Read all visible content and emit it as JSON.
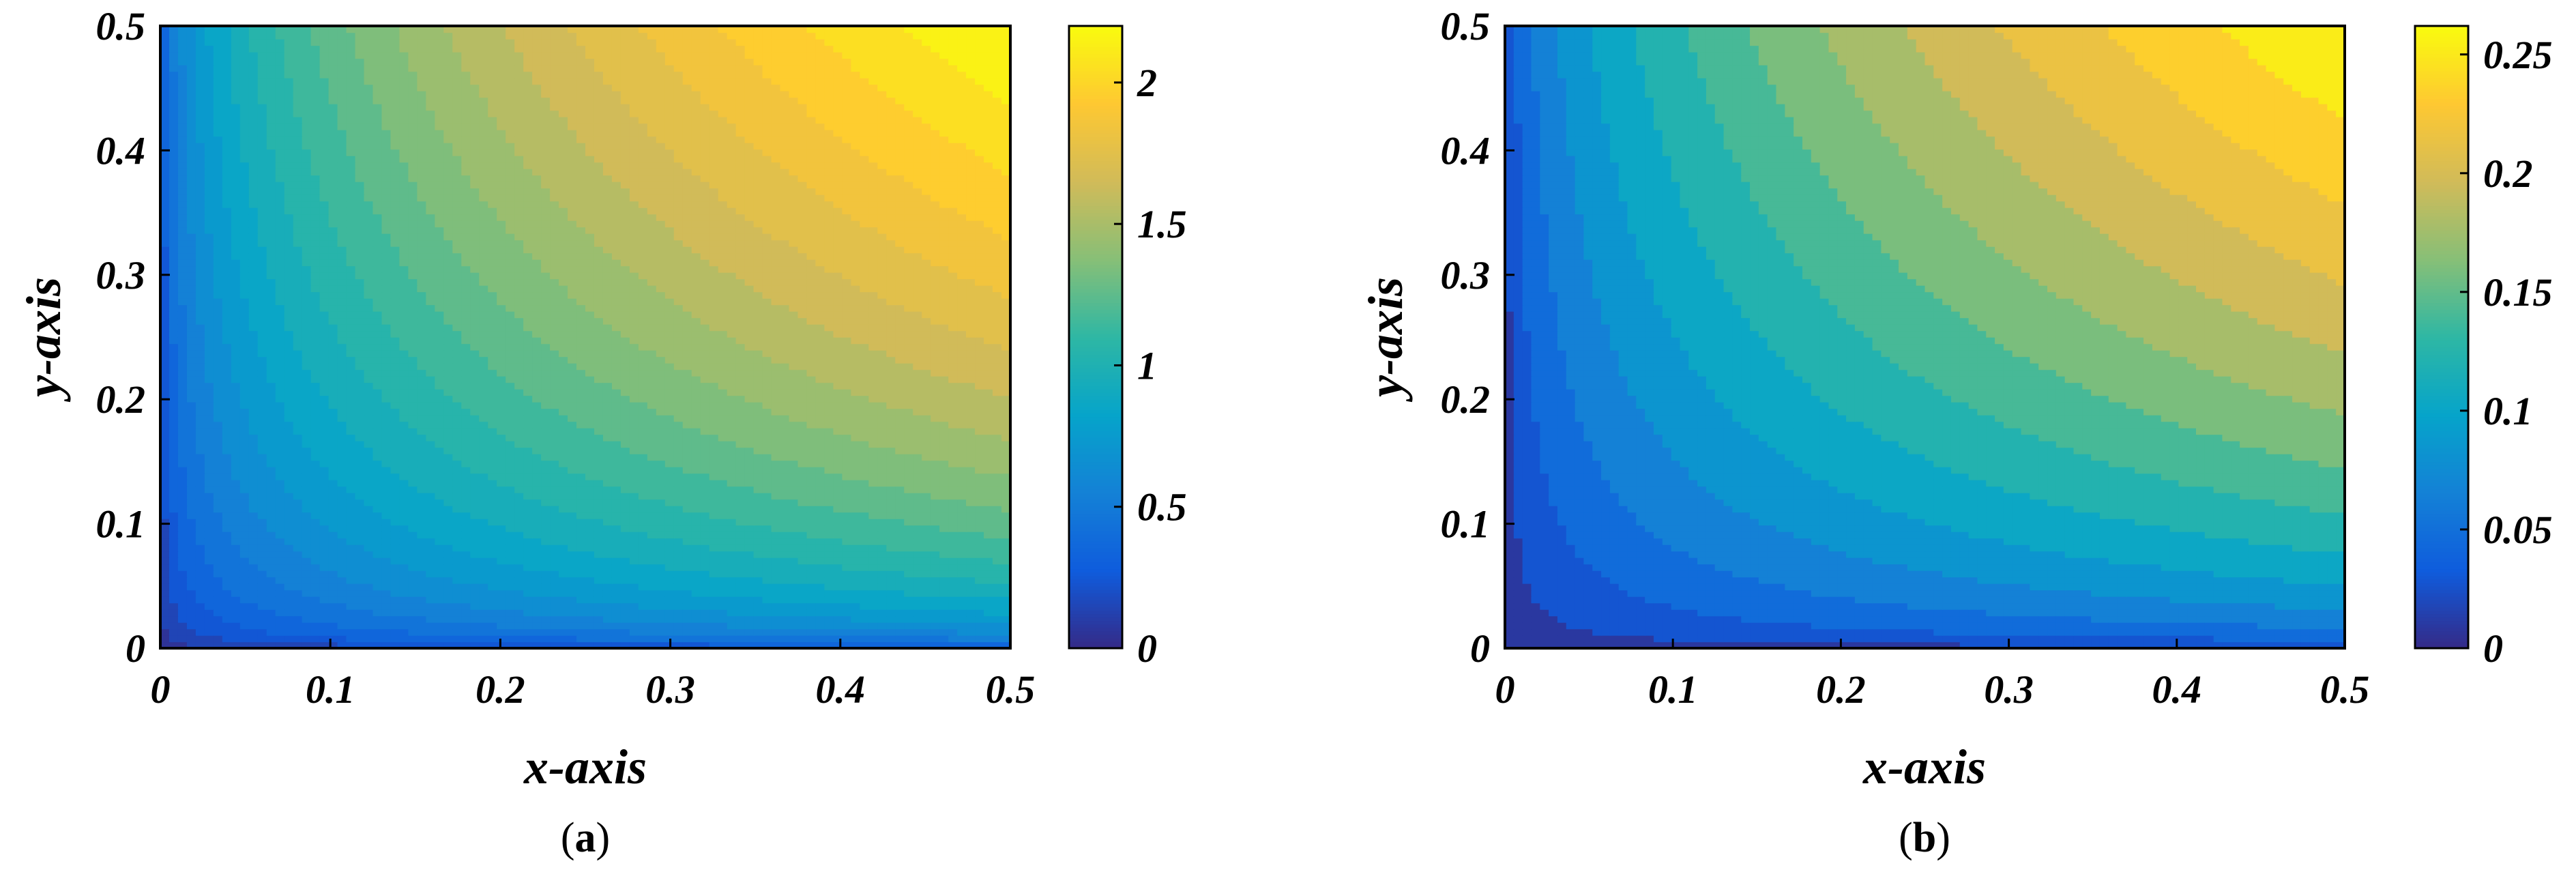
{
  "chart_data": [
    {
      "type": "heatmap",
      "panel_label": "a",
      "xlabel": "x-axis",
      "ylabel": "y-axis",
      "xlim": [
        0,
        0.5
      ],
      "ylim": [
        0,
        0.5
      ],
      "xticks": [
        "0",
        "0.1",
        "0.2",
        "0.3",
        "0.4",
        "0.5"
      ],
      "yticks": [
        "0",
        "0.1",
        "0.2",
        "0.3",
        "0.4",
        "0.5"
      ],
      "colorbar": {
        "range": [
          0,
          2.2
        ],
        "ticks": [
          "0",
          "0.5",
          "1",
          "1.5",
          "2"
        ],
        "tick_values": [
          0,
          0.5,
          1,
          1.5,
          2
        ]
      },
      "field": "approximately max_value * (x/0.5)^0.35 * (y/0.5)^0.35, increasing toward the upper-right corner",
      "max_value": 2.2,
      "contour_levels": 22,
      "colormap": "parula"
    },
    {
      "type": "heatmap",
      "panel_label": "b",
      "xlabel": "x-axis",
      "ylabel": "y-axis",
      "xlim": [
        0,
        0.5
      ],
      "ylim": [
        0,
        0.5
      ],
      "xticks": [
        "0",
        "0.1",
        "0.2",
        "0.3",
        "0.4",
        "0.5"
      ],
      "yticks": [
        "0",
        "0.1",
        "0.2",
        "0.3",
        "0.4",
        "0.5"
      ],
      "colorbar": {
        "range": [
          0,
          0.262
        ],
        "ticks": [
          "0",
          "0.05",
          "0.1",
          "0.15",
          "0.2",
          "0.25"
        ],
        "tick_values": [
          0,
          0.05,
          0.1,
          0.15,
          0.2,
          0.25
        ]
      },
      "field": "approximately max_value * (x/0.5)^0.45 * (y/0.5)^0.45, increasing toward the upper-right corner",
      "max_value": 0.262,
      "contour_levels": 14,
      "colormap": "parula"
    }
  ],
  "colors": {
    "parula": [
      "#352a87",
      "#0f5cdd",
      "#1481d6",
      "#06a4ca",
      "#2eb7a4",
      "#87bf77",
      "#d1bb59",
      "#fec832",
      "#f9fb0e"
    ]
  }
}
